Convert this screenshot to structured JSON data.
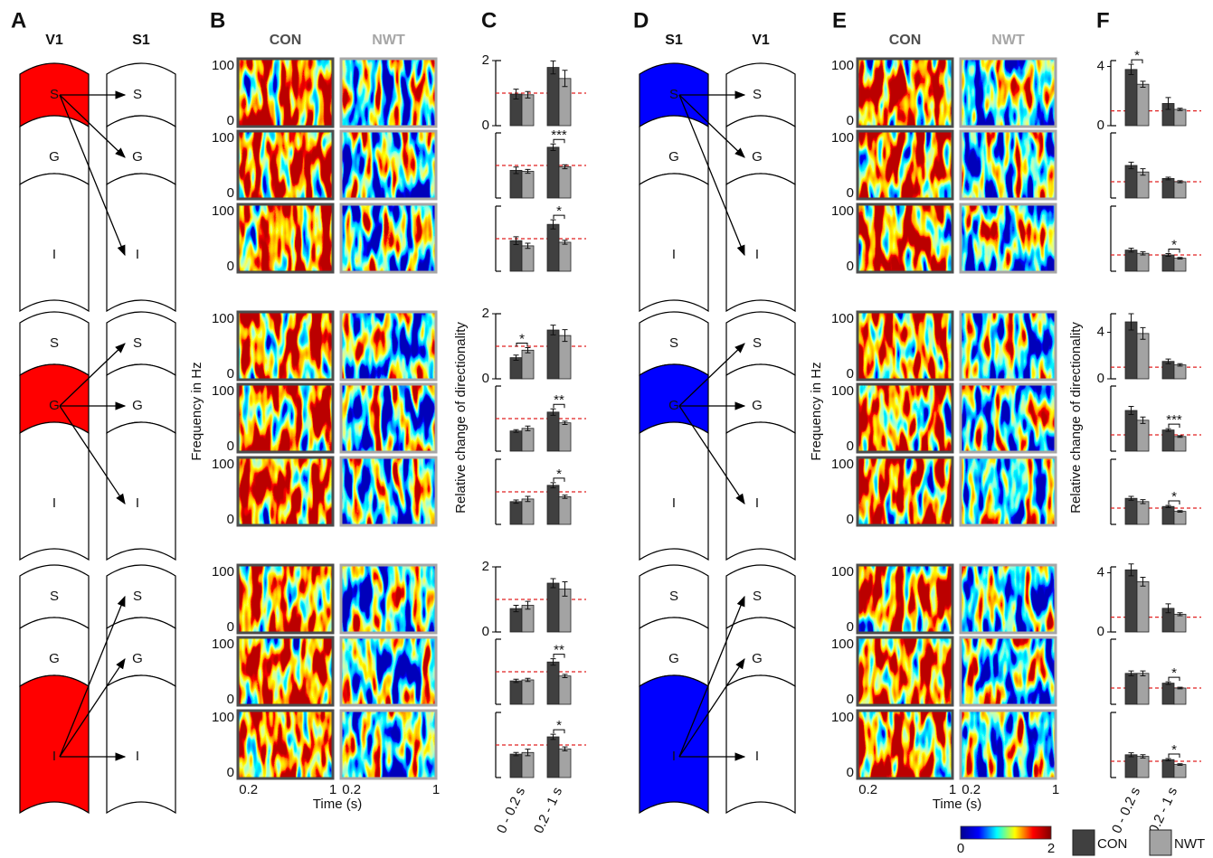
{
  "panel_labels": [
    "A",
    "B",
    "C",
    "D",
    "E",
    "F"
  ],
  "layers": [
    "S",
    "G",
    "I"
  ],
  "diagrams": [
    {
      "columns": [
        "V1",
        "S1"
      ],
      "color": "#ff0000"
    },
    {
      "columns": [
        "S1",
        "V1"
      ],
      "color": "#0000ff"
    }
  ],
  "heatmaps": {
    "columns": [
      {
        "name": "CON",
        "color": "#4d4d4d"
      },
      {
        "name": "NWT",
        "color": "#a6a6a6"
      }
    ],
    "ylim": [
      0,
      100
    ],
    "yticks": [
      0,
      100
    ],
    "xlim": [
      0.1,
      1
    ],
    "xticks": [
      0.2,
      1
    ],
    "ylabel": "Frequency in Hz",
    "xlabel": "Time (s)"
  },
  "bar_ylabel": "Relative change of directionality",
  "bar_categories": [
    "0 - 0.2 s",
    "0.2 - 1 s"
  ],
  "legend": [
    {
      "name": "CON",
      "color": "#404040"
    },
    {
      "name": "NWT",
      "color": "#a3a3a3"
    }
  ],
  "reference_line": {
    "value": 1,
    "color": "#e02020"
  },
  "colorbar": {
    "ticks": [
      0,
      2
    ]
  },
  "chart_data": [
    {
      "type": "bar",
      "ylim": [
        0,
        2
      ],
      "yticks": [
        0,
        2
      ],
      "series": [
        {
          "values": [
            0.97,
            1.79
          ],
          "errors": [
            0.15,
            0.2
          ]
        },
        {
          "values": [
            0.95,
            1.45
          ],
          "errors": [
            0.1,
            0.25
          ]
        }
      ]
    },
    {
      "type": "bar",
      "ylim": [
        0,
        2
      ],
      "series": [
        {
          "values": [
            0.85,
            1.56
          ],
          "errors": [
            0.1,
            0.1
          ]
        },
        {
          "values": [
            0.82,
            0.96
          ],
          "errors": [
            0.06,
            0.06
          ]
        }
      ],
      "significance": [
        {
          "category": 1,
          "label": "***"
        }
      ]
    },
    {
      "type": "bar",
      "ylim": [
        0,
        2
      ],
      "series": [
        {
          "values": [
            0.94,
            1.44
          ],
          "errors": [
            0.12,
            0.14
          ]
        },
        {
          "values": [
            0.78,
            0.89
          ],
          "errors": [
            0.08,
            0.06
          ]
        }
      ],
      "significance": [
        {
          "category": 1,
          "label": "*"
        }
      ]
    },
    {
      "type": "bar",
      "ylim": [
        0,
        2
      ],
      "yticks": [
        0,
        2
      ],
      "series": [
        {
          "values": [
            0.65,
            1.5
          ],
          "errors": [
            0.08,
            0.15
          ]
        },
        {
          "values": [
            0.88,
            1.33
          ],
          "errors": [
            0.08,
            0.18
          ]
        }
      ],
      "significance": [
        {
          "category": 0,
          "label": "*"
        }
      ]
    },
    {
      "type": "bar",
      "ylim": [
        0,
        2
      ],
      "series": [
        {
          "values": [
            0.62,
            1.2
          ],
          "errors": [
            0.04,
            0.1
          ]
        },
        {
          "values": [
            0.7,
            0.87
          ],
          "errors": [
            0.07,
            0.05
          ]
        }
      ],
      "significance": [
        {
          "category": 1,
          "label": "**"
        }
      ]
    },
    {
      "type": "bar",
      "ylim": [
        0,
        2
      ],
      "series": [
        {
          "values": [
            0.7,
            1.2
          ],
          "errors": [
            0.05,
            0.08
          ]
        },
        {
          "values": [
            0.78,
            0.85
          ],
          "errors": [
            0.08,
            0.05
          ]
        }
      ],
      "significance": [
        {
          "category": 1,
          "label": "*"
        }
      ]
    },
    {
      "type": "bar",
      "ylim": [
        0,
        2
      ],
      "yticks": [
        0,
        2
      ],
      "series": [
        {
          "values": [
            0.72,
            1.5
          ],
          "errors": [
            0.1,
            0.14
          ]
        },
        {
          "values": [
            0.82,
            1.32
          ],
          "errors": [
            0.12,
            0.22
          ]
        }
      ]
    },
    {
      "type": "bar",
      "ylim": [
        0,
        2
      ],
      "series": [
        {
          "values": [
            0.72,
            1.3
          ],
          "errors": [
            0.05,
            0.1
          ]
        },
        {
          "values": [
            0.75,
            0.87
          ],
          "errors": [
            0.05,
            0.05
          ]
        }
      ],
      "significance": [
        {
          "category": 1,
          "label": "**"
        }
      ]
    },
    {
      "type": "bar",
      "ylim": [
        0,
        2
      ],
      "series": [
        {
          "values": [
            0.72,
            1.25
          ],
          "errors": [
            0.05,
            0.08
          ]
        },
        {
          "values": [
            0.77,
            0.88
          ],
          "errors": [
            0.1,
            0.06
          ]
        }
      ],
      "significance": [
        {
          "category": 1,
          "label": "*"
        }
      ]
    },
    {
      "type": "bar",
      "ylim": [
        0,
        4.4
      ],
      "yticks": [
        0,
        4
      ],
      "series": [
        {
          "values": [
            3.8,
            1.5
          ],
          "errors": [
            0.35,
            0.4
          ]
        },
        {
          "values": [
            2.8,
            1.1
          ],
          "errors": [
            0.2,
            0.08
          ]
        }
      ],
      "significance": [
        {
          "category": 0,
          "label": "*"
        }
      ]
    },
    {
      "type": "bar",
      "ylim": [
        0,
        4
      ],
      "series": [
        {
          "values": [
            2.0,
            1.2
          ],
          "errors": [
            0.2,
            0.08
          ]
        },
        {
          "values": [
            1.6,
            1.0
          ],
          "errors": [
            0.2,
            0.06
          ]
        }
      ]
    },
    {
      "type": "bar",
      "ylim": [
        0,
        4
      ],
      "series": [
        {
          "values": [
            1.3,
            1.0
          ],
          "errors": [
            0.12,
            0.08
          ]
        },
        {
          "values": [
            1.1,
            0.8
          ],
          "errors": [
            0.1,
            0.05
          ]
        }
      ],
      "significance": [
        {
          "category": 1,
          "label": "*"
        }
      ]
    },
    {
      "type": "bar",
      "ylim": [
        0,
        5.6
      ],
      "yticks": [
        0,
        4
      ],
      "series": [
        {
          "values": [
            4.9,
            1.5
          ],
          "errors": [
            0.7,
            0.2
          ]
        },
        {
          "values": [
            3.9,
            1.2
          ],
          "errors": [
            0.5,
            0.1
          ]
        }
      ]
    },
    {
      "type": "bar",
      "ylim": [
        0,
        4
      ],
      "series": [
        {
          "values": [
            2.5,
            1.3
          ],
          "errors": [
            0.25,
            0.08
          ]
        },
        {
          "values": [
            1.9,
            0.9
          ],
          "errors": [
            0.2,
            0.05
          ]
        }
      ],
      "significance": [
        {
          "category": 1,
          "label": "***"
        }
      ]
    },
    {
      "type": "bar",
      "ylim": [
        0,
        4
      ],
      "series": [
        {
          "values": [
            1.6,
            1.1
          ],
          "errors": [
            0.12,
            0.07
          ]
        },
        {
          "values": [
            1.4,
            0.8
          ],
          "errors": [
            0.12,
            0.05
          ]
        }
      ],
      "significance": [
        {
          "category": 1,
          "label": "*"
        }
      ]
    },
    {
      "type": "bar",
      "ylim": [
        0,
        4.4
      ],
      "yticks": [
        0,
        4
      ],
      "series": [
        {
          "values": [
            4.2,
            1.6
          ],
          "errors": [
            0.4,
            0.3
          ]
        },
        {
          "values": [
            3.4,
            1.2
          ],
          "errors": [
            0.3,
            0.1
          ]
        }
      ]
    },
    {
      "type": "bar",
      "ylim": [
        0,
        4
      ],
      "series": [
        {
          "values": [
            1.9,
            1.3
          ],
          "errors": [
            0.15,
            0.08
          ]
        },
        {
          "values": [
            1.9,
            1.0
          ],
          "errors": [
            0.15,
            0.05
          ]
        }
      ],
      "significance": [
        {
          "category": 1,
          "label": "*"
        }
      ]
    },
    {
      "type": "bar",
      "ylim": [
        0,
        4
      ],
      "series": [
        {
          "values": [
            1.4,
            1.1
          ],
          "errors": [
            0.12,
            0.07
          ]
        },
        {
          "values": [
            1.3,
            0.8
          ],
          "errors": [
            0.1,
            0.05
          ]
        }
      ],
      "significance": [
        {
          "category": 1,
          "label": "*"
        }
      ]
    }
  ]
}
